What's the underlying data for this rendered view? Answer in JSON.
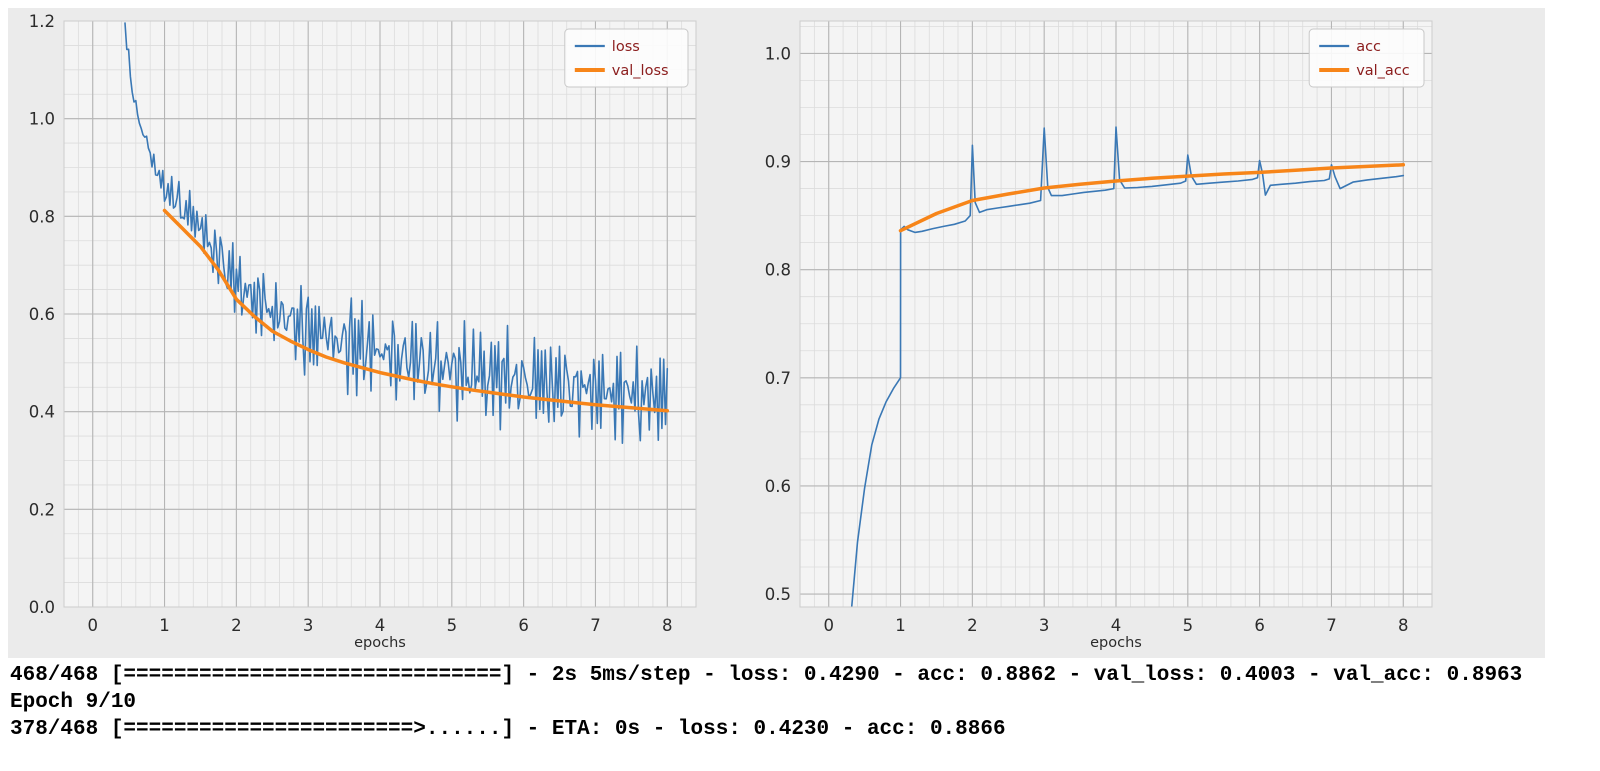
{
  "console": {
    "line1": "468/468 [==============================] - 2s 5ms/step - loss: 0.4290 - acc: 0.8862 - val_loss: 0.4003 - val_acc: 0.8963",
    "line2": "Epoch 9/10",
    "line3": "378/468 [=======================>......] - ETA: 0s - loss: 0.4230 - acc: 0.8866"
  },
  "chart_style": {
    "figure_bg": "#ebebeb",
    "axes_bg": "#f4f4f4",
    "grid_major": "#b5b5b5",
    "grid_minor": "#dcdcdc",
    "border": "#cccccc",
    "tick_text": "#2b2b2b",
    "label_text": "#2b2b2b",
    "legend_text": "#8b1d1d",
    "legend_bg": "#fcfcfc",
    "legend_border": "#c8c8c8",
    "blue": "#3a78b5",
    "orange": "#f78519"
  },
  "chart_data": [
    {
      "type": "line",
      "title": "",
      "xlabel": "epochs",
      "ylabel": "",
      "xlim": [
        -0.4,
        8.4
      ],
      "ylim": [
        0,
        1.2
      ],
      "xticks": [
        0,
        1,
        2,
        3,
        4,
        5,
        6,
        7,
        8
      ],
      "xtick_labels": [
        "0",
        "1",
        "2",
        "3",
        "4",
        "5",
        "6",
        "7",
        "8"
      ],
      "yticks": [
        0,
        0.2,
        0.4,
        0.6,
        0.8,
        1.0,
        1.2
      ],
      "ytick_labels": [
        "0.0",
        "0.2",
        "0.4",
        "0.6",
        "0.8",
        "1.0",
        "1.2"
      ],
      "minor_x": 0.2,
      "minor_y": 0.05,
      "grid": true,
      "legend_position": "top-right",
      "series": [
        {
          "name": "loss",
          "color": "#3a78b5",
          "width": 1.6,
          "generator": {
            "x_start": 0.45,
            "x_end": 8.0,
            "x_step": 0.025,
            "mix": [
              0.65,
              0.55
            ],
            "trend": [
              [
                0.45,
                1.19
              ],
              [
                0.5,
                1.12
              ],
              [
                0.55,
                1.06
              ],
              [
                0.6,
                1.02
              ],
              [
                0.7,
                0.97
              ],
              [
                0.8,
                0.93
              ],
              [
                0.9,
                0.885
              ],
              [
                1.0,
                0.855
              ],
              [
                1.2,
                0.825
              ],
              [
                1.4,
                0.795
              ],
              [
                1.6,
                0.75
              ],
              [
                1.8,
                0.705
              ],
              [
                2.0,
                0.66
              ],
              [
                2.2,
                0.635
              ],
              [
                2.4,
                0.615
              ],
              [
                2.6,
                0.595
              ],
              [
                2.8,
                0.58
              ],
              [
                3.0,
                0.565
              ],
              [
                3.5,
                0.54
              ],
              [
                4.0,
                0.52
              ],
              [
                4.5,
                0.5
              ],
              [
                5.0,
                0.485
              ],
              [
                5.5,
                0.472
              ],
              [
                6.0,
                0.46
              ],
              [
                6.5,
                0.45
              ],
              [
                7.0,
                0.44
              ],
              [
                7.5,
                0.432
              ],
              [
                8.0,
                0.425
              ]
            ],
            "amplitude": [
              [
                0.45,
                0.02
              ],
              [
                0.9,
                0.03
              ],
              [
                1.3,
                0.045
              ],
              [
                1.8,
                0.06
              ],
              [
                2.2,
                0.075
              ],
              [
                3.0,
                0.085
              ],
              [
                4.0,
                0.095
              ],
              [
                8.0,
                0.095
              ]
            ],
            "pattern_a": [
              0.2,
              -0.5,
              0.85,
              -0.1,
              -0.9,
              0.45,
              1.0,
              -0.6,
              0.1,
              -1.0,
              0.5,
              -0.3,
              0.9,
              -0.75,
              0.3,
              -0.15,
              0.7,
              -0.85,
              0.45,
              0.05,
              -0.4,
              0.95,
              -0.25,
              -0.65
            ],
            "pattern_b": [
              0.3,
              -0.6,
              0.9,
              -0.2,
              0.6,
              -1.0,
              0.15,
              0.75,
              -0.45,
              1.0,
              -0.8,
              0.5,
              -0.1,
              0.85,
              -0.35,
              -0.95,
              0.4
            ]
          }
        },
        {
          "name": "val_loss",
          "color": "#f78519",
          "width": 3.5,
          "points": [
            [
              1.0,
              0.812
            ],
            [
              1.25,
              0.775
            ],
            [
              1.5,
              0.738
            ],
            [
              1.75,
              0.69
            ],
            [
              2.0,
              0.63
            ],
            [
              2.25,
              0.595
            ],
            [
              2.5,
              0.565
            ],
            [
              2.75,
              0.545
            ],
            [
              3.0,
              0.527
            ],
            [
              3.25,
              0.512
            ],
            [
              3.5,
              0.5
            ],
            [
              3.75,
              0.49
            ],
            [
              4.0,
              0.48
            ],
            [
              4.25,
              0.472
            ],
            [
              4.5,
              0.464
            ],
            [
              4.75,
              0.457
            ],
            [
              5.0,
              0.451
            ],
            [
              5.25,
              0.445
            ],
            [
              5.5,
              0.44
            ],
            [
              5.75,
              0.435
            ],
            [
              6.0,
              0.43
            ],
            [
              6.25,
              0.426
            ],
            [
              6.5,
              0.422
            ],
            [
              6.75,
              0.418
            ],
            [
              7.0,
              0.414
            ],
            [
              7.25,
              0.411
            ],
            [
              7.5,
              0.408
            ],
            [
              7.75,
              0.405
            ],
            [
              8.0,
              0.402
            ]
          ]
        }
      ]
    },
    {
      "type": "line",
      "title": "",
      "xlabel": "epochs",
      "ylabel": "",
      "xlim": [
        -0.4,
        8.4
      ],
      "ylim": [
        0.488,
        1.03
      ],
      "xticks": [
        0,
        1,
        2,
        3,
        4,
        5,
        6,
        7,
        8
      ],
      "xtick_labels": [
        "0",
        "1",
        "2",
        "3",
        "4",
        "5",
        "6",
        "7",
        "8"
      ],
      "yticks": [
        0.5,
        0.6,
        0.7,
        0.8,
        0.9,
        1.0
      ],
      "ytick_labels": [
        "0.5",
        "0.6",
        "0.7",
        "0.8",
        "0.9",
        "1.0"
      ],
      "minor_x": 0.2,
      "minor_y": 0.025,
      "grid": true,
      "legend_position": "top-right",
      "series": [
        {
          "name": "acc",
          "color": "#3a78b5",
          "width": 1.6,
          "points": [
            [
              0.32,
              0.488
            ],
            [
              0.4,
              0.548
            ],
            [
              0.5,
              0.598
            ],
            [
              0.6,
              0.638
            ],
            [
              0.7,
              0.662
            ],
            [
              0.8,
              0.678
            ],
            [
              0.9,
              0.69
            ],
            [
              1.0,
              0.7
            ],
            [
              1.001,
              0.837
            ],
            [
              1.05,
              0.84
            ],
            [
              1.1,
              0.837
            ],
            [
              1.2,
              0.8345
            ],
            [
              1.3,
              0.8355
            ],
            [
              1.45,
              0.838
            ],
            [
              1.6,
              0.84
            ],
            [
              1.75,
              0.842
            ],
            [
              1.9,
              0.845
            ],
            [
              1.97,
              0.85
            ],
            [
              2.0,
              0.915
            ],
            [
              2.04,
              0.862
            ],
            [
              2.1,
              0.853
            ],
            [
              2.2,
              0.8555
            ],
            [
              2.35,
              0.857
            ],
            [
              2.5,
              0.8585
            ],
            [
              2.65,
              0.86
            ],
            [
              2.8,
              0.8615
            ],
            [
              2.95,
              0.864
            ],
            [
              3.0,
              0.931
            ],
            [
              3.05,
              0.876
            ],
            [
              3.1,
              0.8685
            ],
            [
              3.25,
              0.8685
            ],
            [
              3.4,
              0.87
            ],
            [
              3.55,
              0.8715
            ],
            [
              3.7,
              0.8725
            ],
            [
              3.85,
              0.8735
            ],
            [
              3.97,
              0.875
            ],
            [
              4.0,
              0.932
            ],
            [
              4.05,
              0.883
            ],
            [
              4.12,
              0.8755
            ],
            [
              4.3,
              0.876
            ],
            [
              4.5,
              0.877
            ],
            [
              4.7,
              0.8785
            ],
            [
              4.9,
              0.88
            ],
            [
              4.97,
              0.882
            ],
            [
              5.0,
              0.906
            ],
            [
              5.05,
              0.8865
            ],
            [
              5.12,
              0.879
            ],
            [
              5.3,
              0.88
            ],
            [
              5.5,
              0.881
            ],
            [
              5.7,
              0.882
            ],
            [
              5.9,
              0.8835
            ],
            [
              5.97,
              0.885
            ],
            [
              6.0,
              0.901
            ],
            [
              6.04,
              0.889
            ],
            [
              6.08,
              0.869
            ],
            [
              6.15,
              0.878
            ],
            [
              6.3,
              0.879
            ],
            [
              6.5,
              0.88
            ],
            [
              6.7,
              0.8815
            ],
            [
              6.9,
              0.8825
            ],
            [
              6.97,
              0.884
            ],
            [
              7.0,
              0.897
            ],
            [
              7.05,
              0.886
            ],
            [
              7.12,
              0.875
            ],
            [
              7.3,
              0.881
            ],
            [
              7.5,
              0.883
            ],
            [
              7.7,
              0.8845
            ],
            [
              7.9,
              0.886
            ],
            [
              8.0,
              0.887
            ]
          ]
        },
        {
          "name": "val_acc",
          "color": "#f78519",
          "width": 3.5,
          "points": [
            [
              1.0,
              0.836
            ],
            [
              1.5,
              0.852
            ],
            [
              2.0,
              0.864
            ],
            [
              2.5,
              0.87
            ],
            [
              3.0,
              0.8755
            ],
            [
              3.5,
              0.879
            ],
            [
              4.0,
              0.882
            ],
            [
              4.5,
              0.8845
            ],
            [
              5.0,
              0.8865
            ],
            [
              5.5,
              0.8885
            ],
            [
              6.0,
              0.89
            ],
            [
              6.5,
              0.892
            ],
            [
              7.0,
              0.894
            ],
            [
              7.5,
              0.8955
            ],
            [
              8.0,
              0.897
            ]
          ]
        }
      ]
    }
  ]
}
